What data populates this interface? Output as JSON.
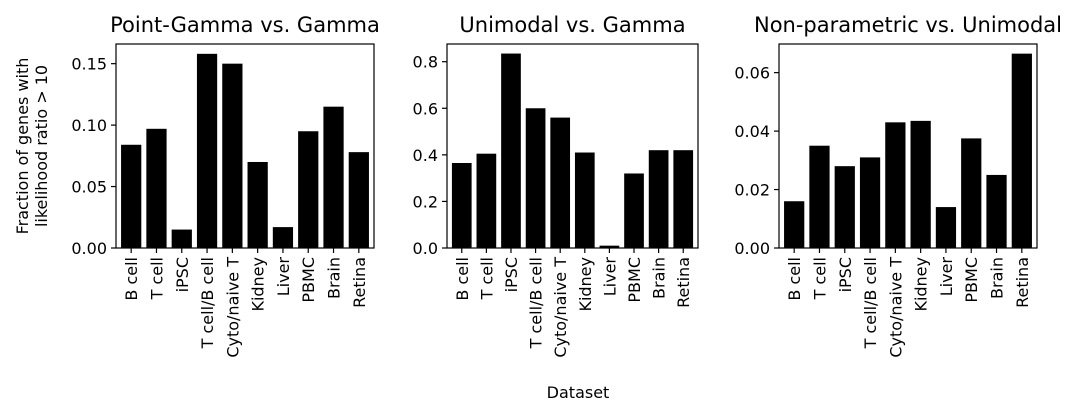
{
  "figure": {
    "ylabel_line1": "Fraction of genes with",
    "ylabel_line2": "likelihood ratio > 10",
    "xlabel": "Dataset"
  },
  "chart_data": [
    {
      "type": "bar",
      "title": "Point-Gamma vs. Gamma",
      "categories": [
        "B cell",
        "T cell",
        "iPSC",
        "T cell/B cell",
        "Cyto/naive T",
        "Kidney",
        "Liver",
        "PBMC",
        "Brain",
        "Retina"
      ],
      "values": [
        0.084,
        0.097,
        0.015,
        0.158,
        0.15,
        0.07,
        0.017,
        0.095,
        0.115,
        0.078
      ],
      "ylim": [
        0,
        0.166
      ],
      "yticks": [
        0.0,
        0.05,
        0.1,
        0.15
      ],
      "ytick_labels": [
        "0.00",
        "0.05",
        "0.10",
        "0.15"
      ],
      "bar_color": "#000000"
    },
    {
      "type": "bar",
      "title": "Unimodal vs. Gamma",
      "categories": [
        "B cell",
        "T cell",
        "iPSC",
        "T cell/B cell",
        "Cyto/naive T",
        "Kidney",
        "Liver",
        "PBMC",
        "Brain",
        "Retina"
      ],
      "values": [
        0.365,
        0.405,
        0.835,
        0.6,
        0.56,
        0.41,
        0.01,
        0.32,
        0.42,
        0.42
      ],
      "ylim": [
        0,
        0.876
      ],
      "yticks": [
        0.0,
        0.2,
        0.4,
        0.6,
        0.8
      ],
      "ytick_labels": [
        "0.0",
        "0.2",
        "0.4",
        "0.6",
        "0.8"
      ],
      "bar_color": "#000000"
    },
    {
      "type": "bar",
      "title": "Non-parametric vs. Unimodal",
      "categories": [
        "B cell",
        "T cell",
        "iPSC",
        "T cell/B cell",
        "Cyto/naive T",
        "Kidney",
        "Liver",
        "PBMC",
        "Brain",
        "Retina"
      ],
      "values": [
        0.016,
        0.035,
        0.028,
        0.031,
        0.043,
        0.0435,
        0.014,
        0.0375,
        0.025,
        0.0665
      ],
      "ylim": [
        0,
        0.0698
      ],
      "yticks": [
        0.0,
        0.02,
        0.04,
        0.06
      ],
      "ytick_labels": [
        "0.00",
        "0.02",
        "0.04",
        "0.06"
      ],
      "bar_color": "#000000"
    }
  ]
}
